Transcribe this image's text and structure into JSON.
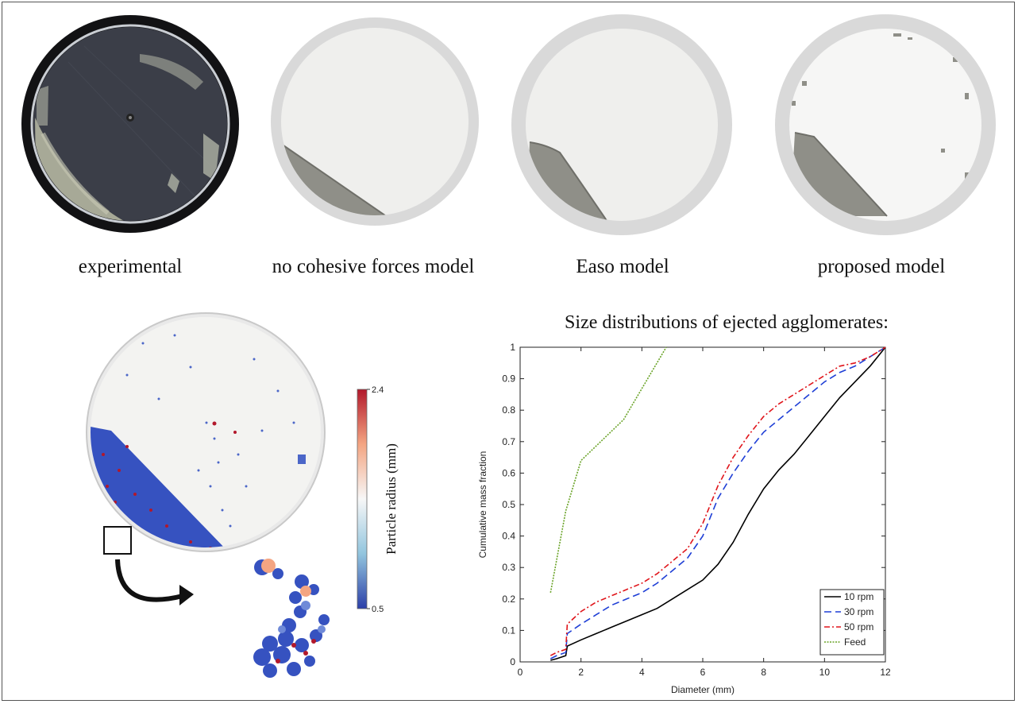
{
  "captions": {
    "experimental": "experimental",
    "no_cohesive": "no cohesive forces model",
    "easo": "Easo model",
    "proposed": "proposed model"
  },
  "colorbar": {
    "label": "Particle radius (mm)",
    "max_label": "2.4",
    "min_label": "0.5",
    "colors": [
      "#b2182b",
      "#f4a582",
      "#f7f7f7",
      "#92c5de",
      "#2c3fa8"
    ]
  },
  "colors": {
    "drum_bg": "#efefed",
    "drum_rim": "#d9d9d9",
    "particles_grey": "#8f8f88",
    "experimental_bg": "#3b3e48",
    "particles_blue": "#3652c0"
  },
  "chart_data": {
    "type": "line",
    "title": "Size distributions of ejected agglomerates:",
    "xlabel": "Diameter (mm)",
    "ylabel": "Cumulative mass fraction",
    "xlim": [
      0,
      12
    ],
    "ylim": [
      0,
      1
    ],
    "xticks": [
      "0",
      "2",
      "4",
      "6",
      "8",
      "10",
      "12"
    ],
    "yticks": [
      "0",
      "0.1",
      "0.2",
      "0.3",
      "0.4",
      "0.5",
      "0.6",
      "0.7",
      "0.8",
      "0.9",
      "1"
    ],
    "legend_position": "bottom-right",
    "series": [
      {
        "name": "10 rpm",
        "color": "#000000",
        "dash": "",
        "x": [
          1.0,
          1.2,
          1.5,
          1.55,
          2.0,
          2.5,
          3.0,
          3.5,
          4.0,
          4.5,
          5.0,
          5.5,
          6.0,
          6.5,
          7.0,
          7.5,
          8.0,
          8.5,
          9.0,
          9.5,
          10.0,
          10.5,
          11.0,
          11.5,
          12.0
        ],
        "y": [
          0.005,
          0.01,
          0.02,
          0.05,
          0.07,
          0.09,
          0.11,
          0.13,
          0.15,
          0.17,
          0.2,
          0.23,
          0.26,
          0.31,
          0.38,
          0.47,
          0.55,
          0.61,
          0.66,
          0.72,
          0.78,
          0.84,
          0.89,
          0.94,
          1.0
        ]
      },
      {
        "name": "30 rpm",
        "color": "#1f3fd6",
        "dash": "9,5",
        "x": [
          1.0,
          1.2,
          1.5,
          1.55,
          2.0,
          2.5,
          3.0,
          3.5,
          4.0,
          4.5,
          5.0,
          5.5,
          6.0,
          6.5,
          7.0,
          7.5,
          8.0,
          8.5,
          9.0,
          9.5,
          10.0,
          10.5,
          11.0,
          11.5,
          12.0
        ],
        "y": [
          0.01,
          0.02,
          0.03,
          0.09,
          0.12,
          0.15,
          0.18,
          0.2,
          0.22,
          0.25,
          0.29,
          0.33,
          0.4,
          0.52,
          0.6,
          0.67,
          0.73,
          0.77,
          0.81,
          0.85,
          0.89,
          0.92,
          0.94,
          0.97,
          1.0
        ]
      },
      {
        "name": "50 rpm",
        "color": "#e0151b",
        "dash": "7,3,2,3",
        "x": [
          1.0,
          1.2,
          1.5,
          1.55,
          2.0,
          2.5,
          3.0,
          3.5,
          4.0,
          4.5,
          5.0,
          5.5,
          6.0,
          6.5,
          7.0,
          7.5,
          8.0,
          8.5,
          9.0,
          9.5,
          10.0,
          10.5,
          11.0,
          11.5,
          12.0
        ],
        "y": [
          0.02,
          0.03,
          0.04,
          0.12,
          0.16,
          0.19,
          0.21,
          0.23,
          0.25,
          0.28,
          0.32,
          0.36,
          0.44,
          0.56,
          0.65,
          0.72,
          0.78,
          0.82,
          0.85,
          0.88,
          0.91,
          0.94,
          0.95,
          0.97,
          1.0
        ]
      },
      {
        "name": "Feed",
        "color": "#6aa328",
        "dash": "2,1.5",
        "x": [
          1.0,
          1.5,
          2.0,
          3.4,
          4.8
        ],
        "y": [
          0.22,
          0.48,
          0.64,
          0.77,
          1.0
        ]
      }
    ]
  }
}
